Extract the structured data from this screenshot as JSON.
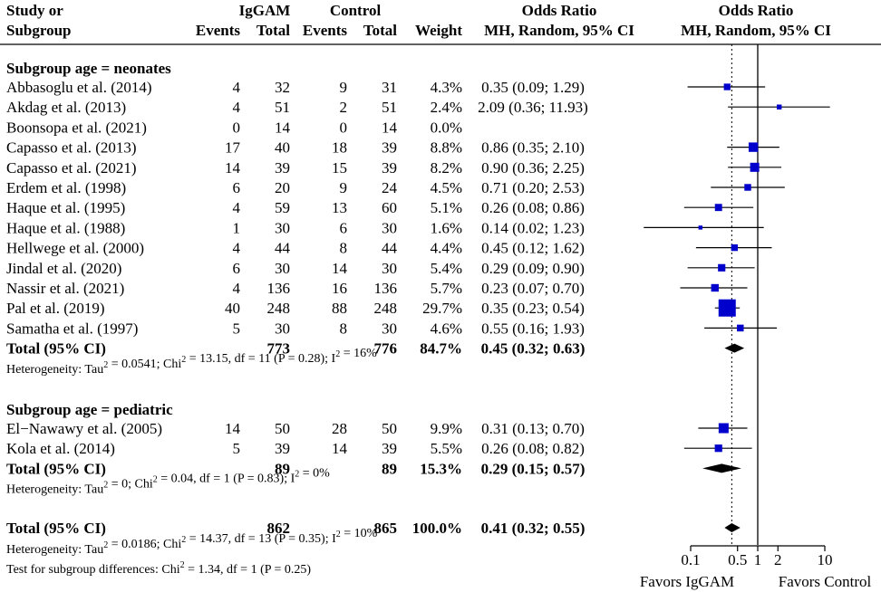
{
  "chart_data": {
    "type": "forest",
    "header": {
      "col_study_1": "Study or",
      "col_study_2": "Subgroup",
      "group_exp": "IgGAM",
      "group_ctrl": "Control",
      "events": "Events",
      "total": "Total",
      "weight": "Weight",
      "or_title": "Odds Ratio",
      "or_method": "MH, Random, 95% CI",
      "plot_title": "Odds Ratio",
      "plot_method": "MH, Random, 95% CI"
    },
    "subgroups": [
      {
        "label": "Subgroup age = neonates",
        "studies": [
          {
            "study": "Abbasoglu et al. (2014)",
            "e_events": "4",
            "e_total": "32",
            "c_events": "9",
            "c_total": "31",
            "weight": "4.3%",
            "or_text": "0.35 (0.09; 1.29)",
            "or": 0.35,
            "lo": 0.09,
            "hi": 1.29,
            "w": 4.3
          },
          {
            "study": "Akdag et al. (2013)",
            "e_events": "4",
            "e_total": "51",
            "c_events": "2",
            "c_total": "51",
            "weight": "2.4%",
            "or_text": "2.09 (0.36; 11.93)",
            "or": 2.09,
            "lo": 0.36,
            "hi": 11.93,
            "w": 2.4
          },
          {
            "study": "Boonsopa et al. (2021)",
            "e_events": "0",
            "e_total": "14",
            "c_events": "0",
            "c_total": "14",
            "weight": "0.0%",
            "or_text": "",
            "or": null,
            "lo": null,
            "hi": null,
            "w": 0
          },
          {
            "study": "Capasso et al. (2013)",
            "e_events": "17",
            "e_total": "40",
            "c_events": "18",
            "c_total": "39",
            "weight": "8.8%",
            "or_text": "0.86 (0.35; 2.10)",
            "or": 0.86,
            "lo": 0.35,
            "hi": 2.1,
            "w": 8.8
          },
          {
            "study": "Capasso et al. (2021)",
            "e_events": "14",
            "e_total": "39",
            "c_events": "15",
            "c_total": "39",
            "weight": "8.2%",
            "or_text": "0.90 (0.36; 2.25)",
            "or": 0.9,
            "lo": 0.36,
            "hi": 2.25,
            "w": 8.2
          },
          {
            "study": "Erdem et al. (1998)",
            "e_events": "6",
            "e_total": "20",
            "c_events": "9",
            "c_total": "24",
            "weight": "4.5%",
            "or_text": "0.71 (0.20; 2.53)",
            "or": 0.71,
            "lo": 0.2,
            "hi": 2.53,
            "w": 4.5
          },
          {
            "study": "Haque et al. (1995)",
            "e_events": "4",
            "e_total": "59",
            "c_events": "13",
            "c_total": "60",
            "weight": "5.1%",
            "or_text": "0.26 (0.08; 0.86)",
            "or": 0.26,
            "lo": 0.08,
            "hi": 0.86,
            "w": 5.1
          },
          {
            "study": "Haque et al. (1988)",
            "e_events": "1",
            "e_total": "30",
            "c_events": "6",
            "c_total": "30",
            "weight": "1.6%",
            "or_text": "0.14 (0.02; 1.23)",
            "or": 0.14,
            "lo": 0.02,
            "hi": 1.23,
            "w": 1.6
          },
          {
            "study": "Hellwege et al. (2000)",
            "e_events": "4",
            "e_total": "44",
            "c_events": "8",
            "c_total": "44",
            "weight": "4.4%",
            "or_text": "0.45 (0.12; 1.62)",
            "or": 0.45,
            "lo": 0.12,
            "hi": 1.62,
            "w": 4.4
          },
          {
            "study": "Jindal et al. (2020)",
            "e_events": "6",
            "e_total": "30",
            "c_events": "14",
            "c_total": "30",
            "weight": "5.4%",
            "or_text": "0.29 (0.09; 0.90)",
            "or": 0.29,
            "lo": 0.09,
            "hi": 0.9,
            "w": 5.4
          },
          {
            "study": "Nassir et al. (2021)",
            "e_events": "4",
            "e_total": "136",
            "c_events": "16",
            "c_total": "136",
            "weight": "5.7%",
            "or_text": "0.23 (0.07; 0.70)",
            "or": 0.23,
            "lo": 0.07,
            "hi": 0.7,
            "w": 5.7
          },
          {
            "study": "Pal et al. (2019)",
            "e_events": "40",
            "e_total": "248",
            "c_events": "88",
            "c_total": "248",
            "weight": "29.7%",
            "or_text": "0.35 (0.23; 0.54)",
            "or": 0.35,
            "lo": 0.23,
            "hi": 0.54,
            "w": 29.7
          },
          {
            "study": "Samatha et al. (1997)",
            "e_events": "5",
            "e_total": "30",
            "c_events": "8",
            "c_total": "30",
            "weight": "4.6%",
            "or_text": "0.55 (0.16; 1.93)",
            "or": 0.55,
            "lo": 0.16,
            "hi": 1.93,
            "w": 4.6
          }
        ],
        "total": {
          "label": "Total (95% CI)",
          "e_total": "773",
          "c_total": "776",
          "weight": "84.7%",
          "or_text": "0.45 (0.32; 0.63)",
          "or": 0.45,
          "lo": 0.32,
          "hi": 0.63
        },
        "heterogeneity": {
          "pre": "Heterogeneity: Tau",
          "mid1": " = 0.0541; Chi",
          "mid2": " = 13.15, df = 11 (P = 0.28); I",
          "end": " = 16%"
        }
      },
      {
        "label": "Subgroup age = pediatric",
        "studies": [
          {
            "study": "El−Nawawy et al. (2005)",
            "e_events": "14",
            "e_total": "50",
            "c_events": "28",
            "c_total": "50",
            "weight": "9.9%",
            "or_text": "0.31 (0.13; 0.70)",
            "or": 0.31,
            "lo": 0.13,
            "hi": 0.7,
            "w": 9.9
          },
          {
            "study": "Kola et al. (2014)",
            "e_events": "5",
            "e_total": "39",
            "c_events": "14",
            "c_total": "39",
            "weight": "5.5%",
            "or_text": "0.26 (0.08; 0.82)",
            "or": 0.26,
            "lo": 0.08,
            "hi": 0.82,
            "w": 5.5
          }
        ],
        "total": {
          "label": "Total (95% CI)",
          "e_total": "89",
          "c_total": "89",
          "weight": "15.3%",
          "or_text": "0.29 (0.15; 0.57)",
          "or": 0.29,
          "lo": 0.15,
          "hi": 0.57
        },
        "heterogeneity": {
          "pre": "Heterogeneity: Tau",
          "mid1": " = 0; Chi",
          "mid2": " = 0.04, df = 1 (P = 0.83); I",
          "end": " = 0%"
        }
      }
    ],
    "overall": {
      "label": "Total (95% CI)",
      "e_total": "862",
      "c_total": "865",
      "weight": "100.0%",
      "or_text": "0.41 (0.32;  0.55)",
      "or": 0.41,
      "lo": 0.32,
      "hi": 0.55,
      "heterogeneity": {
        "pre": "Heterogeneity: Tau",
        "mid1": " = 0.0186; Chi",
        "mid2": " = 14.37, df = 13 (P = 0.35); I",
        "end": " = 10%"
      },
      "subgroup_test": {
        "pre": "Test for subgroup differences: Chi",
        "end": " = 1.34, df = 1 (P = 0.25)"
      }
    },
    "x_axis": {
      "scale": "log",
      "xlim": [
        0.02,
        12
      ],
      "ticks": [
        0.1,
        0.5,
        1,
        2,
        10
      ],
      "tick_labels": [
        "0.1",
        "0.5",
        "1",
        "2",
        "10"
      ],
      "null_line": 1,
      "pooled_line": 0.41
    },
    "favors_left": "Favors IgGAM",
    "favors_right": "Favors Control",
    "colors": {
      "marker": "#0000CC",
      "text": "#000000"
    }
  }
}
